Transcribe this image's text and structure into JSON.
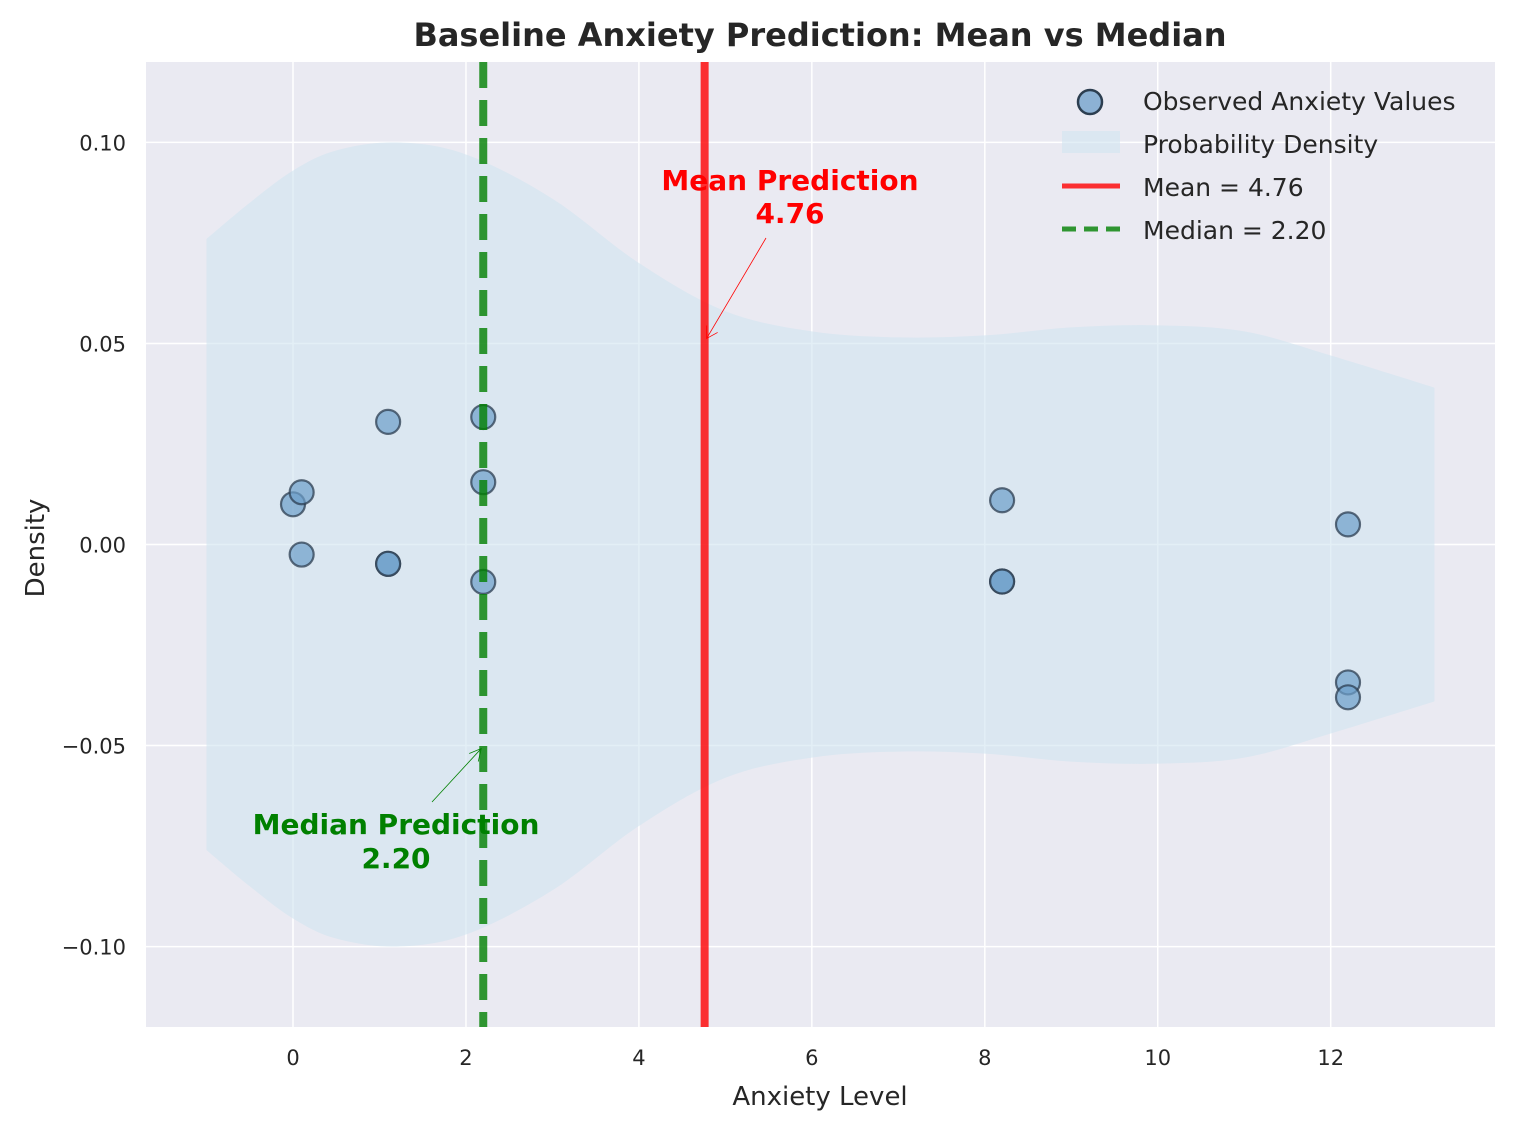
{
  "chart_data": {
    "type": "scatter",
    "title": "Baseline Anxiety Prediction: Mean vs Median",
    "xlabel": "Anxiety Level",
    "ylabel": "Density",
    "xlim": [
      -1.7,
      13.9
    ],
    "ylim": [
      -0.12,
      0.12
    ],
    "xticks": [
      0,
      2,
      4,
      6,
      8,
      10,
      12
    ],
    "xtick_labels": [
      "0",
      "2",
      "4",
      "6",
      "8",
      "10",
      "12"
    ],
    "yticks": [
      0.1,
      0.05,
      0.0,
      -0.05,
      -0.1
    ],
    "ytick_labels": [
      "0.10",
      "0.05",
      "0.00",
      "−0.05",
      "−0.10"
    ],
    "grid": true,
    "legend_position": "top-right",
    "points": [
      {
        "x": 0.0,
        "y": 0.01
      },
      {
        "x": 0.1,
        "y": 0.013
      },
      {
        "x": 0.1,
        "y": -0.0025
      },
      {
        "x": 1.1,
        "y": 0.0305
      },
      {
        "x": 1.1,
        "y": -0.0048
      },
      {
        "x": 1.1,
        "y": -0.0048
      },
      {
        "x": 2.2,
        "y": 0.0317
      },
      {
        "x": 2.2,
        "y": 0.0155
      },
      {
        "x": 2.2,
        "y": -0.0093
      },
      {
        "x": 8.2,
        "y": 0.011
      },
      {
        "x": 8.2,
        "y": -0.0092
      },
      {
        "x": 8.2,
        "y": -0.0092
      },
      {
        "x": 12.2,
        "y": 0.005
      },
      {
        "x": 12.2,
        "y": -0.0343
      },
      {
        "x": 12.2,
        "y": -0.038
      }
    ],
    "density_violin": [
      {
        "x": -1.0,
        "h": 0.076
      },
      {
        "x": -0.5,
        "h": 0.085
      },
      {
        "x": 0.0,
        "h": 0.093
      },
      {
        "x": 0.5,
        "h": 0.098
      },
      {
        "x": 1.2,
        "h": 0.1
      },
      {
        "x": 2.0,
        "h": 0.097
      },
      {
        "x": 3.0,
        "h": 0.086
      },
      {
        "x": 4.0,
        "h": 0.07
      },
      {
        "x": 5.0,
        "h": 0.058
      },
      {
        "x": 6.0,
        "h": 0.053
      },
      {
        "x": 7.0,
        "h": 0.0515
      },
      {
        "x": 8.0,
        "h": 0.052
      },
      {
        "x": 9.0,
        "h": 0.054
      },
      {
        "x": 10.0,
        "h": 0.0545
      },
      {
        "x": 11.0,
        "h": 0.053
      },
      {
        "x": 12.0,
        "h": 0.047
      },
      {
        "x": 13.2,
        "h": 0.039
      }
    ],
    "mean": 4.76,
    "median": 2.2,
    "legend": [
      {
        "label": "Observed Anxiety Values",
        "kind": "marker"
      },
      {
        "label": "Probability Density",
        "kind": "patch"
      },
      {
        "label": "Mean = 4.76",
        "kind": "solid"
      },
      {
        "label": "Median = 2.20",
        "kind": "dashed"
      }
    ],
    "annotations": {
      "mean_line1": "Mean Prediction",
      "mean_line2": "4.76",
      "median_line1": "Median Prediction",
      "median_line2": "2.20"
    },
    "colors": {
      "background": "#eaeaf2",
      "grid": "#ffffff",
      "points": "#6c9ec9",
      "point_edge": "#2c3e50",
      "density": "#d1e5f0",
      "mean": "#ff0000",
      "median": "#008000"
    }
  }
}
